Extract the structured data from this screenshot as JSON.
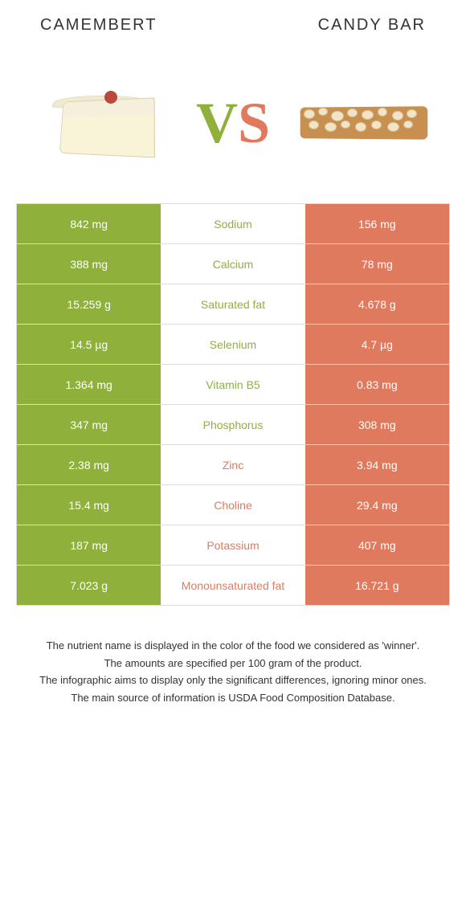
{
  "header": {
    "left_title": "CAMEMBERT",
    "right_title": "CANDY BAR",
    "vs_v": "V",
    "vs_s": "S"
  },
  "colors": {
    "left_bg": "#8fb13c",
    "right_bg": "#e07a5f",
    "left_text": "#8fb13c",
    "right_text": "#e07a5f",
    "cell_text": "#ffffff"
  },
  "rows": [
    {
      "left": "842 mg",
      "label": "Sodium",
      "right": "156 mg",
      "winner": "left"
    },
    {
      "left": "388 mg",
      "label": "Calcium",
      "right": "78 mg",
      "winner": "left"
    },
    {
      "left": "15.259 g",
      "label": "Saturated fat",
      "right": "4.678 g",
      "winner": "left"
    },
    {
      "left": "14.5 µg",
      "label": "Selenium",
      "right": "4.7 µg",
      "winner": "left"
    },
    {
      "left": "1.364 mg",
      "label": "Vitamin B5",
      "right": "0.83 mg",
      "winner": "left"
    },
    {
      "left": "347 mg",
      "label": "Phosphorus",
      "right": "308 mg",
      "winner": "left"
    },
    {
      "left": "2.38 mg",
      "label": "Zinc",
      "right": "3.94 mg",
      "winner": "right"
    },
    {
      "left": "15.4 mg",
      "label": "Choline",
      "right": "29.4 mg",
      "winner": "right"
    },
    {
      "left": "187 mg",
      "label": "Potassium",
      "right": "407 mg",
      "winner": "right"
    },
    {
      "left": "7.023 g",
      "label": "Monounsaturated fat",
      "right": "16.721 g",
      "winner": "right"
    }
  ],
  "footer": {
    "line1": "The nutrient name is displayed in the color of the food we considered as 'winner'.",
    "line2": "The amounts are specified per 100 gram of the product.",
    "line3": "The infographic aims to display only the significant differences, ignoring minor ones.",
    "line4": "The main source of information is USDA Food Composition Database."
  }
}
